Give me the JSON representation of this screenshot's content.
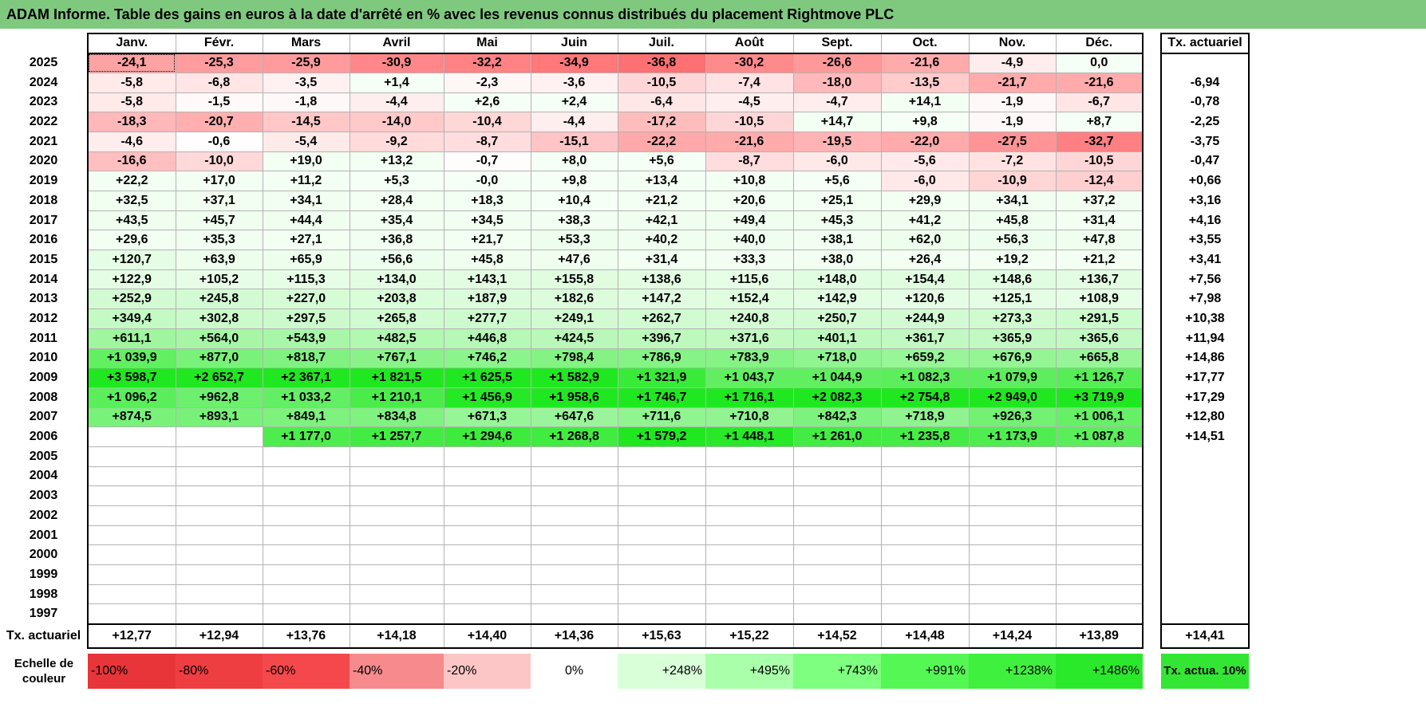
{
  "title": "ADAM Informe. Table des gains en euros à la date d'arrêté en % avec les revenus connus distribués du placement Rightmove PLC",
  "header": {
    "months": [
      "Janv.",
      "Févr.",
      "Mars",
      "Avril",
      "Mai",
      "Juin",
      "Juil.",
      "Août",
      "Sept.",
      "Oct.",
      "Nov.",
      "Déc."
    ],
    "actuarial": "Tx. actuariel"
  },
  "rows": [
    {
      "year": "2025",
      "values": [
        "-24,1",
        "-25,3",
        "-25,9",
        "-30,9",
        "-32,2",
        "-34,9",
        "-36,8",
        "-30,2",
        "-26,6",
        "-21,6",
        "-4,9",
        "0,0"
      ],
      "rate": ""
    },
    {
      "year": "2024",
      "values": [
        "-5,8",
        "-6,8",
        "-3,5",
        "+1,4",
        "-2,3",
        "-3,6",
        "-10,5",
        "-7,4",
        "-18,0",
        "-13,5",
        "-21,7",
        "-21,6"
      ],
      "rate": "-6,94"
    },
    {
      "year": "2023",
      "values": [
        "-5,8",
        "-1,5",
        "-1,8",
        "-4,4",
        "+2,6",
        "+2,4",
        "-6,4",
        "-4,5",
        "-4,7",
        "+14,1",
        "-1,9",
        "-6,7"
      ],
      "rate": "-0,78"
    },
    {
      "year": "2022",
      "values": [
        "-18,3",
        "-20,7",
        "-14,5",
        "-14,0",
        "-10,4",
        "-4,4",
        "-17,2",
        "-10,5",
        "+14,7",
        "+9,8",
        "-1,9",
        "+8,7"
      ],
      "rate": "-2,25"
    },
    {
      "year": "2021",
      "values": [
        "-4,6",
        "-0,6",
        "-5,4",
        "-9,2",
        "-8,7",
        "-15,1",
        "-22,2",
        "-21,6",
        "-19,5",
        "-22,0",
        "-27,5",
        "-32,7"
      ],
      "rate": "-3,75"
    },
    {
      "year": "2020",
      "values": [
        "-16,6",
        "-10,0",
        "+19,0",
        "+13,2",
        "-0,7",
        "+8,0",
        "+5,6",
        "-8,7",
        "-6,0",
        "-5,6",
        "-7,2",
        "-10,5"
      ],
      "rate": "-0,47"
    },
    {
      "year": "2019",
      "values": [
        "+22,2",
        "+17,0",
        "+11,2",
        "+5,3",
        "-0,0",
        "+9,8",
        "+13,4",
        "+10,8",
        "+5,6",
        "-6,0",
        "-10,9",
        "-12,4"
      ],
      "rate": "+0,66"
    },
    {
      "year": "2018",
      "values": [
        "+32,5",
        "+37,1",
        "+34,1",
        "+28,4",
        "+18,3",
        "+10,4",
        "+21,2",
        "+20,6",
        "+25,1",
        "+29,9",
        "+34,1",
        "+37,2"
      ],
      "rate": "+3,16"
    },
    {
      "year": "2017",
      "values": [
        "+43,5",
        "+45,7",
        "+44,4",
        "+35,4",
        "+34,5",
        "+38,3",
        "+42,1",
        "+49,4",
        "+45,3",
        "+41,2",
        "+45,8",
        "+31,4"
      ],
      "rate": "+4,16"
    },
    {
      "year": "2016",
      "values": [
        "+29,6",
        "+35,3",
        "+27,1",
        "+36,8",
        "+21,7",
        "+53,3",
        "+40,2",
        "+40,0",
        "+38,1",
        "+62,0",
        "+56,3",
        "+47,8"
      ],
      "rate": "+3,55"
    },
    {
      "year": "2015",
      "values": [
        "+120,7",
        "+63,9",
        "+65,9",
        "+56,6",
        "+45,8",
        "+47,6",
        "+31,4",
        "+33,3",
        "+38,0",
        "+26,4",
        "+19,2",
        "+21,2"
      ],
      "rate": "+3,41"
    },
    {
      "year": "2014",
      "values": [
        "+122,9",
        "+105,2",
        "+115,3",
        "+134,0",
        "+143,1",
        "+155,8",
        "+138,6",
        "+115,6",
        "+148,0",
        "+154,4",
        "+148,6",
        "+136,7"
      ],
      "rate": "+7,56"
    },
    {
      "year": "2013",
      "values": [
        "+252,9",
        "+245,8",
        "+227,0",
        "+203,8",
        "+187,9",
        "+182,6",
        "+147,2",
        "+152,4",
        "+142,9",
        "+120,6",
        "+125,1",
        "+108,9"
      ],
      "rate": "+7,98"
    },
    {
      "year": "2012",
      "values": [
        "+349,4",
        "+302,8",
        "+297,5",
        "+265,8",
        "+277,7",
        "+249,1",
        "+262,7",
        "+240,8",
        "+250,7",
        "+244,9",
        "+273,3",
        "+291,5"
      ],
      "rate": "+10,38"
    },
    {
      "year": "2011",
      "values": [
        "+611,1",
        "+564,0",
        "+543,9",
        "+482,5",
        "+446,8",
        "+424,5",
        "+396,7",
        "+371,6",
        "+401,1",
        "+361,7",
        "+365,9",
        "+365,6"
      ],
      "rate": "+11,94"
    },
    {
      "year": "2010",
      "values": [
        "+1 039,9",
        "+877,0",
        "+818,7",
        "+767,1",
        "+746,2",
        "+798,4",
        "+786,9",
        "+783,9",
        "+718,0",
        "+659,2",
        "+676,9",
        "+665,8"
      ],
      "rate": "+14,86"
    },
    {
      "year": "2009",
      "values": [
        "+3 598,7",
        "+2 652,7",
        "+2 367,1",
        "+1 821,5",
        "+1 625,5",
        "+1 582,9",
        "+1 321,9",
        "+1 043,7",
        "+1 044,9",
        "+1 082,3",
        "+1 079,9",
        "+1 126,7"
      ],
      "rate": "+17,77"
    },
    {
      "year": "2008",
      "values": [
        "+1 096,2",
        "+962,8",
        "+1 033,2",
        "+1 210,1",
        "+1 456,9",
        "+1 958,6",
        "+1 746,7",
        "+1 716,1",
        "+2 082,3",
        "+2 754,8",
        "+2 949,0",
        "+3 719,9"
      ],
      "rate": "+17,29"
    },
    {
      "year": "2007",
      "values": [
        "+874,5",
        "+893,1",
        "+849,1",
        "+834,8",
        "+671,3",
        "+647,6",
        "+711,6",
        "+710,8",
        "+842,3",
        "+718,9",
        "+926,3",
        "+1 006,1"
      ],
      "rate": "+12,80"
    },
    {
      "year": "2006",
      "values": [
        "",
        "",
        "+1 177,0",
        "+1 257,7",
        "+1 294,6",
        "+1 268,8",
        "+1 579,2",
        "+1 448,1",
        "+1 261,0",
        "+1 235,8",
        "+1 173,9",
        "+1 087,8"
      ],
      "rate": "+14,51"
    },
    {
      "year": "2005",
      "values": [
        "",
        "",
        "",
        "",
        "",
        "",
        "",
        "",
        "",
        "",
        "",
        ""
      ],
      "rate": ""
    },
    {
      "year": "2004",
      "values": [
        "",
        "",
        "",
        "",
        "",
        "",
        "",
        "",
        "",
        "",
        "",
        ""
      ],
      "rate": ""
    },
    {
      "year": "2003",
      "values": [
        "",
        "",
        "",
        "",
        "",
        "",
        "",
        "",
        "",
        "",
        "",
        ""
      ],
      "rate": ""
    },
    {
      "year": "2002",
      "values": [
        "",
        "",
        "",
        "",
        "",
        "",
        "",
        "",
        "",
        "",
        "",
        ""
      ],
      "rate": ""
    },
    {
      "year": "2001",
      "values": [
        "",
        "",
        "",
        "",
        "",
        "",
        "",
        "",
        "",
        "",
        "",
        ""
      ],
      "rate": ""
    },
    {
      "year": "2000",
      "values": [
        "",
        "",
        "",
        "",
        "",
        "",
        "",
        "",
        "",
        "",
        "",
        ""
      ],
      "rate": ""
    },
    {
      "year": "1999",
      "values": [
        "",
        "",
        "",
        "",
        "",
        "",
        "",
        "",
        "",
        "",
        "",
        ""
      ],
      "rate": ""
    },
    {
      "year": "1998",
      "values": [
        "",
        "",
        "",
        "",
        "",
        "",
        "",
        "",
        "",
        "",
        "",
        ""
      ],
      "rate": ""
    },
    {
      "year": "1997",
      "values": [
        "",
        "",
        "",
        "",
        "",
        "",
        "",
        "",
        "",
        "",
        "",
        ""
      ],
      "rate": ""
    }
  ],
  "footer": {
    "label": "Tx. actuariel",
    "values": [
      "+12,77",
      "+12,94",
      "+13,76",
      "+14,18",
      "+14,40",
      "+14,36",
      "+15,63",
      "+15,22",
      "+14,52",
      "+14,48",
      "+14,24",
      "+13,89"
    ],
    "total": "+14,41"
  },
  "legend": {
    "label": "Echelle de couleur",
    "items": [
      {
        "text": "-100%",
        "color": "#e8353a"
      },
      {
        "text": "-80%",
        "color": "#ef3e42"
      },
      {
        "text": "-60%",
        "color": "#f4484c"
      },
      {
        "text": "-40%",
        "color": "#f78a8c"
      },
      {
        "text": "-20%",
        "color": "#fcc6c7"
      },
      {
        "text": "0%",
        "color": "#ffffff"
      },
      {
        "text": "+248%",
        "color": "#d8ffd8"
      },
      {
        "text": "+495%",
        "color": "#aaffaa"
      },
      {
        "text": "+743%",
        "color": "#7fff7f"
      },
      {
        "text": "+991%",
        "color": "#55f755"
      },
      {
        "text": "+1238%",
        "color": "#3ff03f"
      },
      {
        "text": "+1486%",
        "color": "#2ae82a"
      }
    ],
    "rate_label": "Tx. actua. 10%",
    "rate_color": "#33e633"
  }
}
